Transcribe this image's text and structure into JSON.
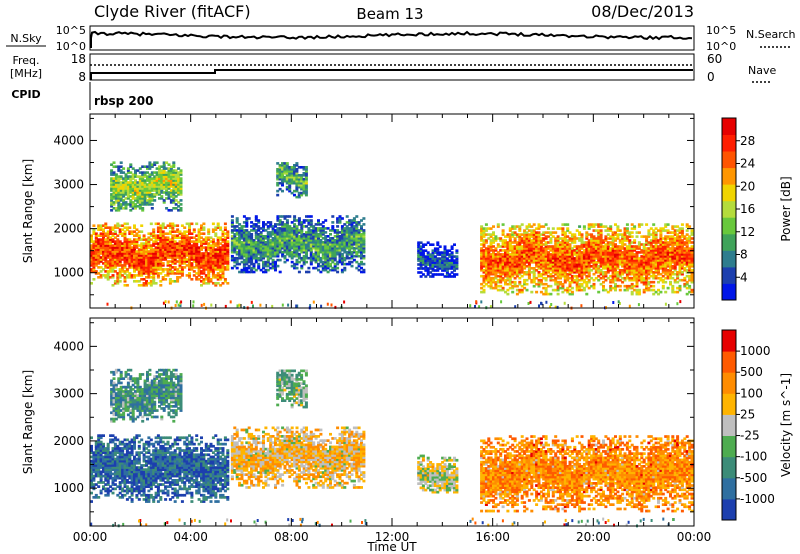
{
  "header": {
    "station": "Clyde River (fitACF)",
    "beam": "Beam 13",
    "date": "08/Dec/2013"
  },
  "status_panels": {
    "nsky_label": "N.Sky",
    "nsky_ticks": [
      "10^5",
      "10^0"
    ],
    "nsearch_label": "N.Search",
    "nsearch_ticks": [
      "10^5",
      "10^0"
    ],
    "freq_label": "Freq.",
    "freq_unit": "[MHz]",
    "freq_ticks": [
      "18",
      "8"
    ],
    "nave_label": "Nave",
    "nave_ticks": [
      "60",
      "0"
    ],
    "cpid_label": "CPID",
    "cpid_value": "rbsp 200"
  },
  "chart_data": [
    {
      "type": "heatmap",
      "name": "power",
      "ylabel": "Slant Range [km]",
      "xlabel": "Time UT",
      "xlim_hours": [
        0,
        24
      ],
      "ylim_km": [
        200,
        4600
      ],
      "x_ticks": [
        "00:00",
        "04:00",
        "08:00",
        "12:00",
        "16:00",
        "20:00",
        "00:00"
      ],
      "y_ticks": [
        4000,
        3000,
        2000,
        1000
      ],
      "colorbar": {
        "label": "Power [dB]",
        "ticks": [
          "28",
          "24",
          "20",
          "16",
          "12",
          "8",
          "4"
        ],
        "colors": [
          "#0016e8",
          "#1c3fae",
          "#2e7d8e",
          "#3fa35a",
          "#68c83c",
          "#b4dc3c",
          "#f0d400",
          "#ff9600",
          "#ff5400",
          "#ff1e00",
          "#e60000"
        ],
        "range": [
          0,
          32
        ]
      },
      "echo_regions": [
        {
          "t_start": 0.0,
          "t_end": 5.5,
          "r_low": 700,
          "r_high": 2100,
          "level": 0.85
        },
        {
          "t_start": 0.8,
          "t_end": 3.6,
          "r_low": 2400,
          "r_high": 3500,
          "level": 0.5
        },
        {
          "t_start": 5.6,
          "t_end": 10.9,
          "r_low": 1000,
          "r_high": 2300,
          "level": 0.35
        },
        {
          "t_start": 7.4,
          "t_end": 8.6,
          "r_low": 2700,
          "r_high": 3500,
          "level": 0.4
        },
        {
          "t_start": 13.0,
          "t_end": 14.6,
          "r_low": 900,
          "r_high": 1700,
          "level": 0.2
        },
        {
          "t_start": 15.5,
          "t_end": 23.9,
          "r_low": 500,
          "r_high": 2100,
          "level": 0.8
        }
      ]
    },
    {
      "type": "heatmap",
      "name": "velocity",
      "ylabel": "Slant Range [km]",
      "xlabel": "Time UT",
      "xlim_hours": [
        0,
        24
      ],
      "ylim_km": [
        200,
        4600
      ],
      "x_ticks": [
        "00:00",
        "04:00",
        "08:00",
        "12:00",
        "16:00",
        "20:00",
        "00:00"
      ],
      "y_ticks": [
        4000,
        3000,
        2000,
        1000
      ],
      "colorbar": {
        "label": "Velocity [m s^-1]",
        "ticks": [
          "1000",
          "500",
          "100",
          "25",
          "-25",
          "-100",
          "-500",
          "-1000"
        ],
        "colors": [
          "#1c3fae",
          "#2f6fa0",
          "#3c8c78",
          "#4eac50",
          "#bfbfbf",
          "#ffb400",
          "#ff8c00",
          "#ff5a00",
          "#e60000"
        ],
        "range": [
          -1200,
          1200
        ]
      },
      "echo_regions": [
        {
          "t_start": 0.0,
          "t_end": 5.5,
          "r_low": 700,
          "r_high": 2100,
          "level": 0.15
        },
        {
          "t_start": 0.8,
          "t_end": 3.6,
          "r_low": 2400,
          "r_high": 3500,
          "level": 0.3
        },
        {
          "t_start": 5.6,
          "t_end": 10.9,
          "r_low": 1000,
          "r_high": 2300,
          "level": 0.6
        },
        {
          "t_start": 7.4,
          "t_end": 8.6,
          "r_low": 2700,
          "r_high": 3500,
          "level": 0.4
        },
        {
          "t_start": 13.0,
          "t_end": 14.6,
          "r_low": 900,
          "r_high": 1700,
          "level": 0.5
        },
        {
          "t_start": 15.5,
          "t_end": 23.9,
          "r_low": 500,
          "r_high": 2100,
          "level": 0.72
        }
      ]
    }
  ]
}
